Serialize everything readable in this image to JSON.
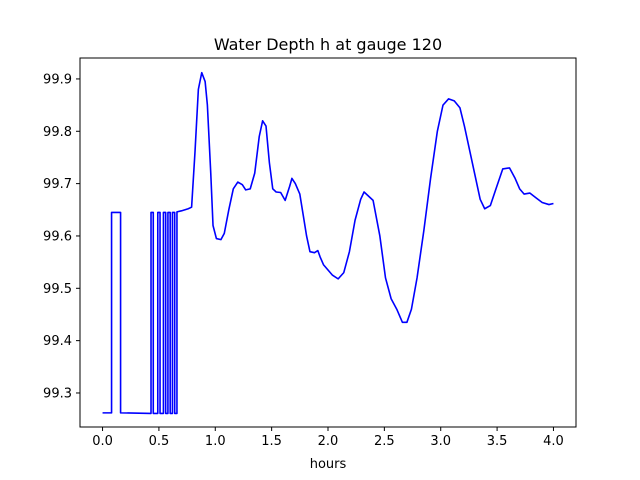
{
  "chart_data": {
    "type": "line",
    "title": "Water Depth h at gauge 120",
    "xlabel": "hours",
    "ylabel": "",
    "xlim": [
      -0.2,
      4.2
    ],
    "ylim": [
      99.235,
      99.94
    ],
    "xticks": [
      0.0,
      0.5,
      1.0,
      1.5,
      2.0,
      2.5,
      3.0,
      3.5,
      4.0
    ],
    "xtick_labels": [
      "0.0",
      "0.5",
      "1.0",
      "1.5",
      "2.0",
      "2.5",
      "3.0",
      "3.5",
      "4.0"
    ],
    "yticks": [
      99.3,
      99.4,
      99.5,
      99.6,
      99.7,
      99.8,
      99.9
    ],
    "ytick_labels": [
      "99.3",
      "99.4",
      "99.5",
      "99.6",
      "99.7",
      "99.8",
      "99.9"
    ],
    "grid": false,
    "series": [
      {
        "color": "#0000ff",
        "points": [
          [
            0.0,
            99.262
          ],
          [
            0.08,
            99.262
          ],
          [
            0.08,
            99.645
          ],
          [
            0.16,
            99.645
          ],
          [
            0.16,
            99.262
          ],
          [
            0.43,
            99.261
          ],
          [
            0.43,
            99.645
          ],
          [
            0.45,
            99.645
          ],
          [
            0.45,
            99.261
          ],
          [
            0.49,
            99.261
          ],
          [
            0.49,
            99.645
          ],
          [
            0.51,
            99.645
          ],
          [
            0.51,
            99.261
          ],
          [
            0.54,
            99.261
          ],
          [
            0.54,
            99.645
          ],
          [
            0.56,
            99.645
          ],
          [
            0.56,
            99.261
          ],
          [
            0.58,
            99.261
          ],
          [
            0.58,
            99.645
          ],
          [
            0.6,
            99.645
          ],
          [
            0.6,
            99.261
          ],
          [
            0.62,
            99.261
          ],
          [
            0.62,
            99.645
          ],
          [
            0.64,
            99.645
          ],
          [
            0.64,
            99.261
          ],
          [
            0.66,
            99.261
          ],
          [
            0.66,
            99.646
          ],
          [
            0.7,
            99.648
          ],
          [
            0.76,
            99.652
          ],
          [
            0.79,
            99.655
          ],
          [
            0.82,
            99.76
          ],
          [
            0.85,
            99.88
          ],
          [
            0.88,
            99.912
          ],
          [
            0.91,
            99.895
          ],
          [
            0.93,
            99.85
          ],
          [
            0.96,
            99.72
          ],
          [
            0.98,
            99.62
          ],
          [
            1.01,
            99.595
          ],
          [
            1.05,
            99.593
          ],
          [
            1.08,
            99.605
          ],
          [
            1.12,
            99.65
          ],
          [
            1.16,
            99.69
          ],
          [
            1.2,
            99.703
          ],
          [
            1.24,
            99.698
          ],
          [
            1.27,
            99.688
          ],
          [
            1.31,
            99.69
          ],
          [
            1.35,
            99.72
          ],
          [
            1.39,
            99.79
          ],
          [
            1.42,
            99.82
          ],
          [
            1.45,
            99.81
          ],
          [
            1.48,
            99.74
          ],
          [
            1.51,
            99.69
          ],
          [
            1.54,
            99.684
          ],
          [
            1.58,
            99.683
          ],
          [
            1.62,
            99.668
          ],
          [
            1.66,
            99.695
          ],
          [
            1.68,
            99.71
          ],
          [
            1.71,
            99.7
          ],
          [
            1.75,
            99.68
          ],
          [
            1.78,
            99.64
          ],
          [
            1.81,
            99.6
          ],
          [
            1.84,
            99.57
          ],
          [
            1.88,
            99.568
          ],
          [
            1.91,
            99.572
          ],
          [
            1.93,
            99.56
          ],
          [
            1.96,
            99.545
          ],
          [
            2.0,
            99.535
          ],
          [
            2.04,
            99.525
          ],
          [
            2.09,
            99.518
          ],
          [
            2.14,
            99.53
          ],
          [
            2.19,
            99.57
          ],
          [
            2.24,
            99.63
          ],
          [
            2.29,
            99.67
          ],
          [
            2.32,
            99.684
          ],
          [
            2.35,
            99.678
          ],
          [
            2.4,
            99.668
          ],
          [
            2.46,
            99.6
          ],
          [
            2.51,
            99.52
          ],
          [
            2.56,
            99.48
          ],
          [
            2.61,
            99.46
          ],
          [
            2.66,
            99.435
          ],
          [
            2.7,
            99.435
          ],
          [
            2.74,
            99.46
          ],
          [
            2.79,
            99.52
          ],
          [
            2.85,
            99.61
          ],
          [
            2.91,
            99.71
          ],
          [
            2.97,
            99.8
          ],
          [
            3.02,
            99.85
          ],
          [
            3.07,
            99.862
          ],
          [
            3.12,
            99.858
          ],
          [
            3.17,
            99.845
          ],
          [
            3.21,
            99.81
          ],
          [
            3.26,
            99.76
          ],
          [
            3.3,
            99.72
          ],
          [
            3.35,
            99.67
          ],
          [
            3.39,
            99.652
          ],
          [
            3.44,
            99.658
          ],
          [
            3.49,
            99.69
          ],
          [
            3.55,
            99.728
          ],
          [
            3.61,
            99.73
          ],
          [
            3.66,
            99.71
          ],
          [
            3.7,
            99.69
          ],
          [
            3.74,
            99.68
          ],
          [
            3.79,
            99.682
          ],
          [
            3.85,
            99.672
          ],
          [
            3.9,
            99.664
          ],
          [
            3.96,
            99.66
          ],
          [
            4.0,
            99.662
          ]
        ]
      }
    ]
  }
}
